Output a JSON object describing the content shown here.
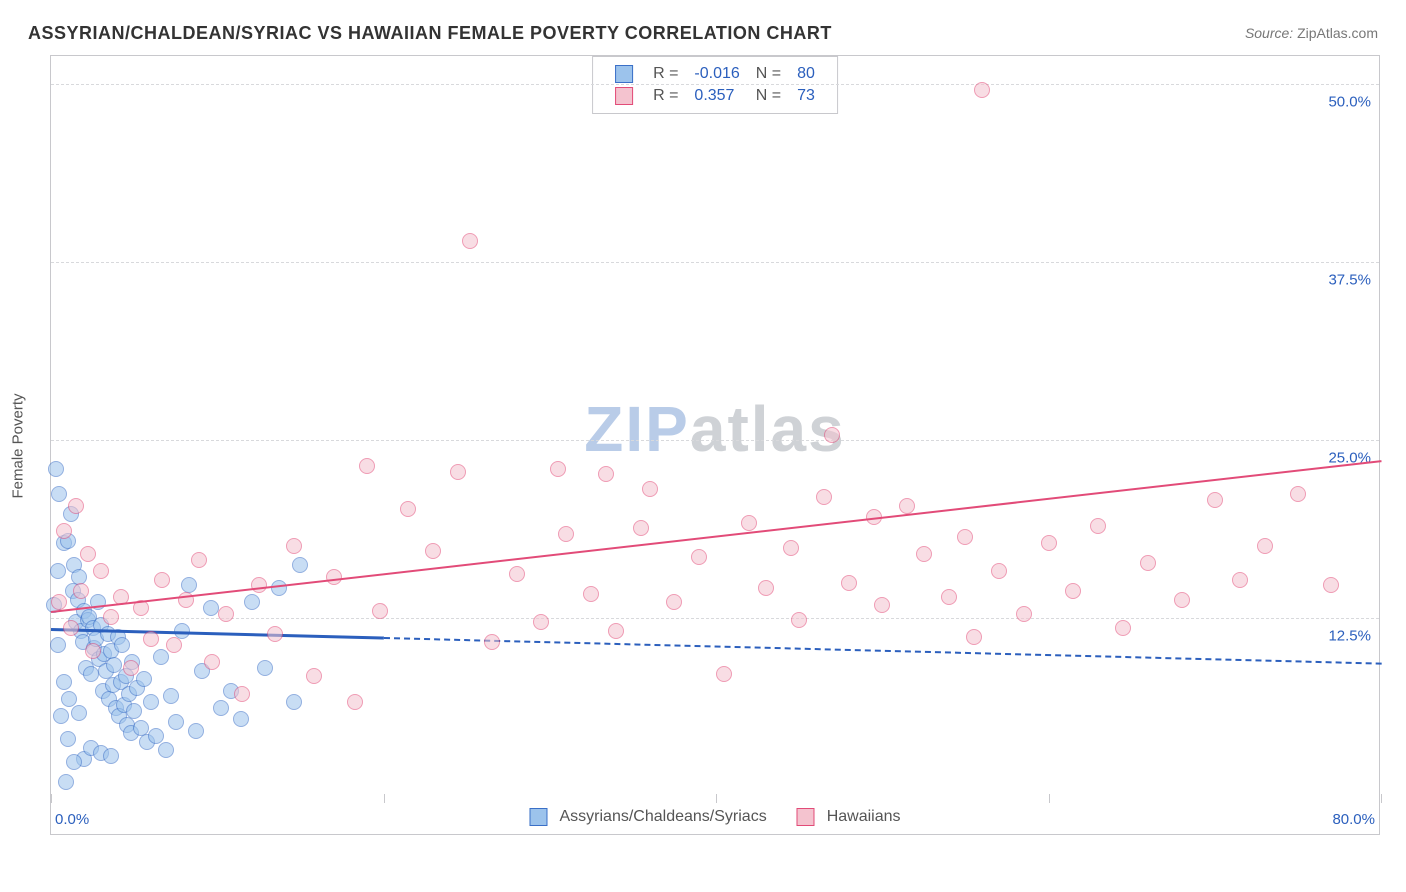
{
  "chart": {
    "type": "scatter",
    "title": "ASSYRIAN/CHALDEAN/SYRIAC VS HAWAIIAN FEMALE POVERTY CORRELATION CHART",
    "source_label": "Source:",
    "source_name": "ZipAtlas.com",
    "y_axis_title": "Female Poverty",
    "watermark_a": "ZIP",
    "watermark_b": "atlas",
    "background_color": "#ffffff",
    "border_color": "#c8c8cc",
    "grid_color": "#d8d9dc",
    "axis_text_color": "#2b5fbd",
    "label_color": "#555555",
    "xlim": [
      0,
      80
    ],
    "ylim": [
      0,
      52
    ],
    "x_ticks": [
      0,
      20,
      40,
      60,
      80
    ],
    "x_tick_labels": [
      "0.0%",
      "",
      "",
      "",
      "80.0%"
    ],
    "y_gridlines": [
      12.5,
      25.0,
      37.5,
      50.0
    ],
    "y_tick_labels": [
      "12.5%",
      "25.0%",
      "37.5%",
      "50.0%"
    ],
    "point_radius": 8,
    "point_opacity": 0.55,
    "series": [
      {
        "id": "assyrians",
        "name": "Assyrians/Chaldeans/Syriacs",
        "fill": "#9cc3ec",
        "stroke": "#3a6fc7",
        "R": "-0.016",
        "N": "80",
        "trend": {
          "y_at_x0": 11.8,
          "y_at_x80": 9.4,
          "x_solid_end": 20,
          "solid_width": 3,
          "dash": "7,6",
          "color": "#2b5fbd"
        },
        "points": [
          [
            0.3,
            23.0
          ],
          [
            0.5,
            21.2
          ],
          [
            0.8,
            17.8
          ],
          [
            1.0,
            17.9
          ],
          [
            1.2,
            19.8
          ],
          [
            1.3,
            14.4
          ],
          [
            1.4,
            16.2
          ],
          [
            1.5,
            12.2
          ],
          [
            1.6,
            13.8
          ],
          [
            1.7,
            15.4
          ],
          [
            1.8,
            11.6
          ],
          [
            1.9,
            10.8
          ],
          [
            2.0,
            13.0
          ],
          [
            2.1,
            9.0
          ],
          [
            2.2,
            12.4
          ],
          [
            2.3,
            12.6
          ],
          [
            2.4,
            8.6
          ],
          [
            2.5,
            11.8
          ],
          [
            2.6,
            10.4
          ],
          [
            2.7,
            11.0
          ],
          [
            2.8,
            13.6
          ],
          [
            2.9,
            9.6
          ],
          [
            3.0,
            12.0
          ],
          [
            3.1,
            7.4
          ],
          [
            3.2,
            10.0
          ],
          [
            3.3,
            8.8
          ],
          [
            3.4,
            11.4
          ],
          [
            3.5,
            6.8
          ],
          [
            3.6,
            10.2
          ],
          [
            3.7,
            7.8
          ],
          [
            3.8,
            9.2
          ],
          [
            3.9,
            6.2
          ],
          [
            4.0,
            11.2
          ],
          [
            4.1,
            5.6
          ],
          [
            4.2,
            8.0
          ],
          [
            4.3,
            10.6
          ],
          [
            4.4,
            6.4
          ],
          [
            4.5,
            8.4
          ],
          [
            4.6,
            5.0
          ],
          [
            4.7,
            7.2
          ],
          [
            4.8,
            4.4
          ],
          [
            4.9,
            9.4
          ],
          [
            5.0,
            6.0
          ],
          [
            5.2,
            7.6
          ],
          [
            5.4,
            4.8
          ],
          [
            5.6,
            8.2
          ],
          [
            5.8,
            3.8
          ],
          [
            6.0,
            6.6
          ],
          [
            6.3,
            4.2
          ],
          [
            6.6,
            9.8
          ],
          [
            6.9,
            3.2
          ],
          [
            7.2,
            7.0
          ],
          [
            7.5,
            5.2
          ],
          [
            7.9,
            11.6
          ],
          [
            8.3,
            14.8
          ],
          [
            8.7,
            4.6
          ],
          [
            9.1,
            8.8
          ],
          [
            9.6,
            13.2
          ],
          [
            10.2,
            6.2
          ],
          [
            10.8,
            7.4
          ],
          [
            11.4,
            5.4
          ],
          [
            12.1,
            13.6
          ],
          [
            12.9,
            9.0
          ],
          [
            13.7,
            14.6
          ],
          [
            14.6,
            6.6
          ],
          [
            2.0,
            2.6
          ],
          [
            2.4,
            3.4
          ],
          [
            3.0,
            3.0
          ],
          [
            3.6,
            2.8
          ],
          [
            1.0,
            4.0
          ],
          [
            1.4,
            2.4
          ],
          [
            0.6,
            5.6
          ],
          [
            0.8,
            8.0
          ],
          [
            1.1,
            6.8
          ],
          [
            1.7,
            5.8
          ],
          [
            0.4,
            10.6
          ],
          [
            0.2,
            13.4
          ],
          [
            0.4,
            15.8
          ],
          [
            0.9,
            1.0
          ],
          [
            15.0,
            16.2
          ]
        ]
      },
      {
        "id": "hawaiians",
        "name": "Hawaiians",
        "fill": "#f4c3cf",
        "stroke": "#e24b78",
        "R": "0.357",
        "N": "73",
        "trend": {
          "y_at_x0": 13.0,
          "y_at_x80": 23.6,
          "x_solid_end": 80,
          "solid_width": 2.5,
          "dash": null,
          "color": "#e24b78"
        },
        "points": [
          [
            0.5,
            13.6
          ],
          [
            1.2,
            11.8
          ],
          [
            1.8,
            14.4
          ],
          [
            2.5,
            10.2
          ],
          [
            3.0,
            15.8
          ],
          [
            3.6,
            12.6
          ],
          [
            4.2,
            14.0
          ],
          [
            4.8,
            9.0
          ],
          [
            5.4,
            13.2
          ],
          [
            6.0,
            11.0
          ],
          [
            6.7,
            15.2
          ],
          [
            7.4,
            10.6
          ],
          [
            8.1,
            13.8
          ],
          [
            8.9,
            16.6
          ],
          [
            9.7,
            9.4
          ],
          [
            10.5,
            12.8
          ],
          [
            11.5,
            7.2
          ],
          [
            12.5,
            14.8
          ],
          [
            13.5,
            11.4
          ],
          [
            14.6,
            17.6
          ],
          [
            15.8,
            8.4
          ],
          [
            17.0,
            15.4
          ],
          [
            18.3,
            6.6
          ],
          [
            19.0,
            23.2
          ],
          [
            19.8,
            13.0
          ],
          [
            21.5,
            20.2
          ],
          [
            23.0,
            17.2
          ],
          [
            24.5,
            22.8
          ],
          [
            25.2,
            39.0
          ],
          [
            26.5,
            10.8
          ],
          [
            28.0,
            15.6
          ],
          [
            29.5,
            12.2
          ],
          [
            30.5,
            23.0
          ],
          [
            31.0,
            18.4
          ],
          [
            32.5,
            14.2
          ],
          [
            33.4,
            22.6
          ],
          [
            34.0,
            11.6
          ],
          [
            35.5,
            18.8
          ],
          [
            36.0,
            21.6
          ],
          [
            37.5,
            13.6
          ],
          [
            39.0,
            16.8
          ],
          [
            40.5,
            8.6
          ],
          [
            42.0,
            19.2
          ],
          [
            43.0,
            14.6
          ],
          [
            44.5,
            17.4
          ],
          [
            45.0,
            12.4
          ],
          [
            46.5,
            21.0
          ],
          [
            47.0,
            25.4
          ],
          [
            48.0,
            15.0
          ],
          [
            49.5,
            19.6
          ],
          [
            50.0,
            13.4
          ],
          [
            51.5,
            20.4
          ],
          [
            52.5,
            17.0
          ],
          [
            54.0,
            14.0
          ],
          [
            55.0,
            18.2
          ],
          [
            55.5,
            11.2
          ],
          [
            56.0,
            49.6
          ],
          [
            57.0,
            15.8
          ],
          [
            58.5,
            12.8
          ],
          [
            60.0,
            17.8
          ],
          [
            61.5,
            14.4
          ],
          [
            63.0,
            19.0
          ],
          [
            64.5,
            11.8
          ],
          [
            66.0,
            16.4
          ],
          [
            68.0,
            13.8
          ],
          [
            70.0,
            20.8
          ],
          [
            71.5,
            15.2
          ],
          [
            73.0,
            17.6
          ],
          [
            75.0,
            21.2
          ],
          [
            77.0,
            14.8
          ],
          [
            0.8,
            18.6
          ],
          [
            1.5,
            20.4
          ],
          [
            2.2,
            17.0
          ]
        ]
      }
    ]
  }
}
